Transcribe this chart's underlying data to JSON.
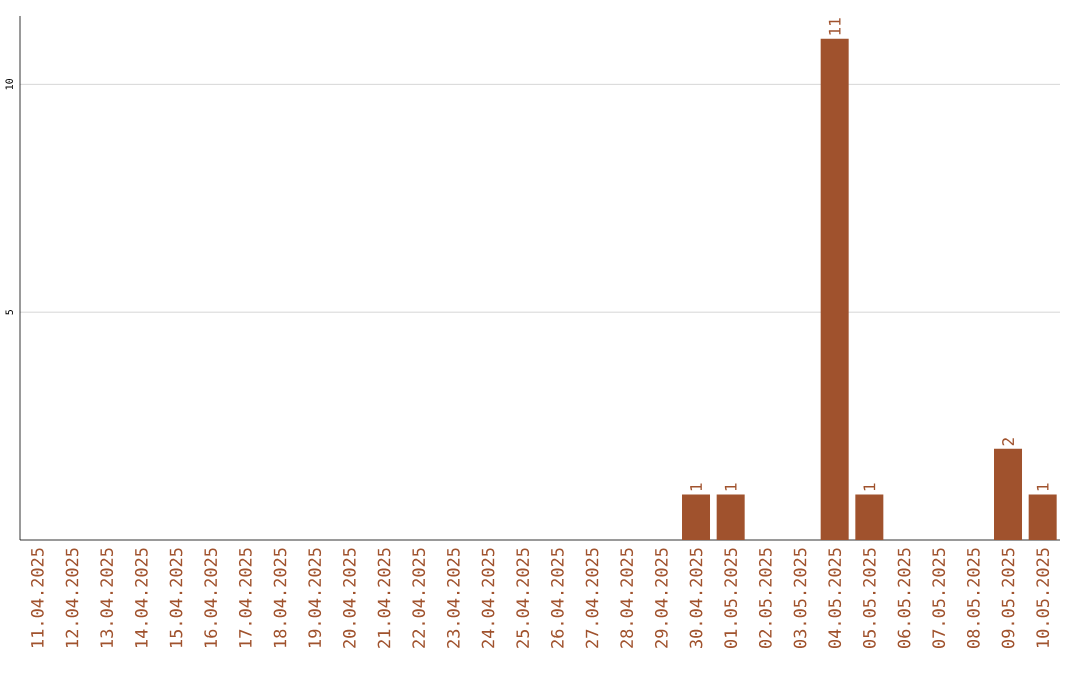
{
  "chart_data": {
    "type": "bar",
    "categories": [
      "11.04.2025",
      "12.04.2025",
      "13.04.2025",
      "14.04.2025",
      "15.04.2025",
      "16.04.2025",
      "17.04.2025",
      "18.04.2025",
      "19.04.2025",
      "20.04.2025",
      "21.04.2025",
      "22.04.2025",
      "23.04.2025",
      "24.04.2025",
      "25.04.2025",
      "26.04.2025",
      "27.04.2025",
      "28.04.2025",
      "29.04.2025",
      "30.04.2025",
      "01.05.2025",
      "02.05.2025",
      "03.05.2025",
      "04.05.2025",
      "05.05.2025",
      "06.05.2025",
      "07.05.2025",
      "08.05.2025",
      "09.05.2025",
      "10.05.2025"
    ],
    "values": [
      0,
      0,
      0,
      0,
      0,
      0,
      0,
      0,
      0,
      0,
      0,
      0,
      0,
      0,
      0,
      0,
      0,
      0,
      0,
      1,
      1,
      0,
      0,
      11,
      1,
      0,
      0,
      0,
      2,
      1
    ],
    "value_labels": [
      null,
      null,
      null,
      null,
      null,
      null,
      null,
      null,
      null,
      null,
      null,
      null,
      null,
      null,
      null,
      null,
      null,
      null,
      null,
      "1",
      "1",
      null,
      null,
      "11",
      "1",
      null,
      null,
      null,
      "2",
      "1"
    ],
    "color": "#a0522d",
    "ylim": [
      0,
      11.5
    ],
    "yticks": [
      5,
      10
    ],
    "grid": "y"
  }
}
